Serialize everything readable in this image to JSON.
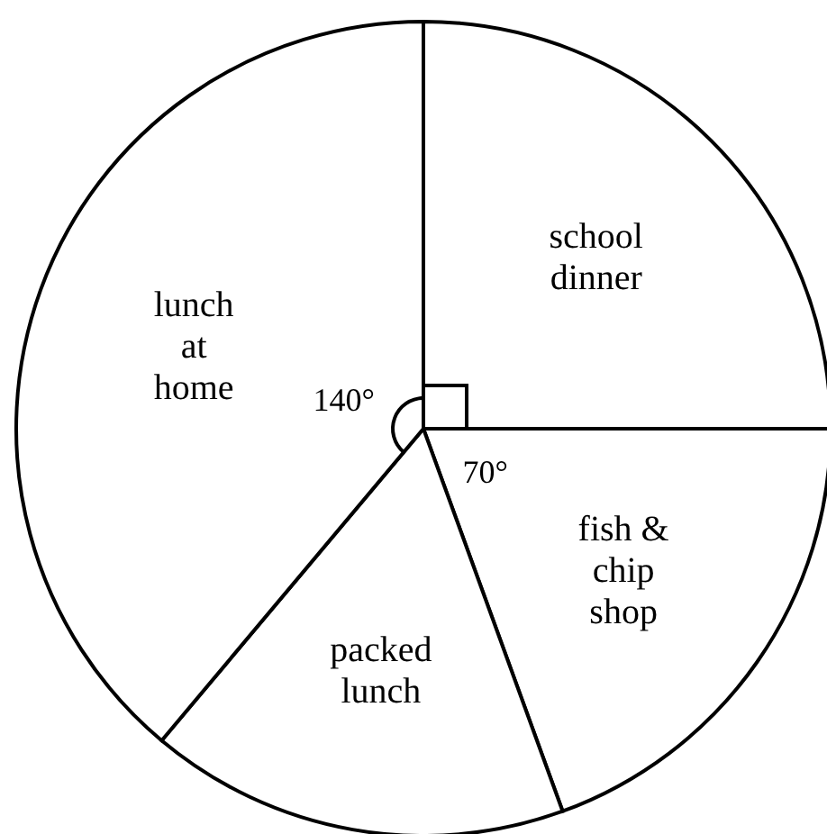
{
  "chart_data": {
    "type": "pie",
    "categories": [
      "school dinner",
      "fish & chip shop",
      "packed lunch",
      "lunch at home"
    ],
    "values": [
      90,
      70,
      60,
      140
    ],
    "colors": [
      "#ffffff",
      "#ffffff",
      "#ffffff",
      "#ffffff"
    ],
    "value_labels": [
      null,
      "70°",
      null,
      "140°"
    ]
  }
}
